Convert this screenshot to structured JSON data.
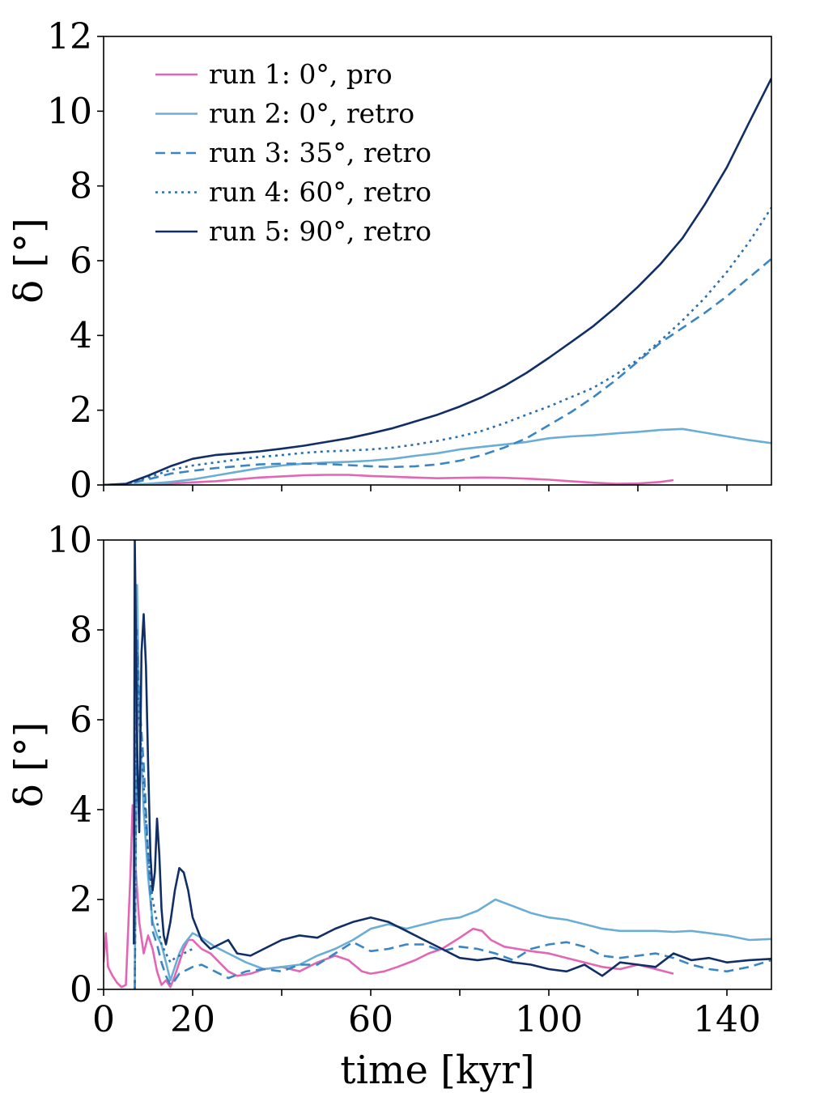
{
  "chart_data": [
    {
      "type": "line",
      "panel": "top",
      "title": "",
      "ylabel": "δ [°]",
      "xlabel": "",
      "xlim": [
        0,
        150
      ],
      "ylim": [
        0,
        12
      ],
      "yticks": [
        0,
        2,
        4,
        6,
        8,
        10,
        12
      ],
      "xticks": [
        0,
        20,
        60,
        100,
        140
      ],
      "legend_position": "top-left",
      "series": [
        {
          "name": "run 1: 0°, pro",
          "color": "#e366b4",
          "dash": "solid",
          "x": [
            0,
            5,
            10,
            15,
            20,
            25,
            30,
            35,
            40,
            45,
            50,
            55,
            60,
            65,
            70,
            75,
            80,
            85,
            90,
            95,
            100,
            105,
            110,
            115,
            120,
            125,
            128
          ],
          "y": [
            0,
            0,
            0.02,
            0.04,
            0.07,
            0.1,
            0.15,
            0.2,
            0.23,
            0.26,
            0.27,
            0.27,
            0.24,
            0.22,
            0.2,
            0.18,
            0.19,
            0.2,
            0.19,
            0.17,
            0.14,
            0.1,
            0.06,
            0.03,
            0.04,
            0.08,
            0.13
          ]
        },
        {
          "name": "run 2: 0°, retro",
          "color": "#6aaed6",
          "dash": "solid",
          "x": [
            0,
            5,
            10,
            15,
            20,
            25,
            30,
            35,
            40,
            45,
            50,
            55,
            60,
            65,
            70,
            75,
            80,
            85,
            90,
            95,
            100,
            105,
            110,
            115,
            120,
            125,
            130,
            135,
            140,
            145,
            150
          ],
          "y": [
            0,
            0.01,
            0.03,
            0.08,
            0.15,
            0.25,
            0.35,
            0.45,
            0.52,
            0.57,
            0.6,
            0.62,
            0.65,
            0.7,
            0.78,
            0.85,
            0.95,
            1.02,
            1.08,
            1.15,
            1.25,
            1.3,
            1.33,
            1.38,
            1.42,
            1.47,
            1.5,
            1.4,
            1.3,
            1.2,
            1.12
          ]
        },
        {
          "name": "run 3: 35°, retro",
          "color": "#3a86c4",
          "dash": "dashed",
          "x": [
            0,
            5,
            10,
            15,
            20,
            25,
            30,
            35,
            40,
            45,
            50,
            55,
            60,
            65,
            70,
            75,
            80,
            85,
            90,
            95,
            100,
            105,
            110,
            115,
            120,
            125,
            130,
            135,
            140,
            145,
            150
          ],
          "y": [
            0,
            0.02,
            0.15,
            0.3,
            0.38,
            0.45,
            0.5,
            0.55,
            0.57,
            0.57,
            0.56,
            0.53,
            0.5,
            0.48,
            0.5,
            0.55,
            0.65,
            0.8,
            1.0,
            1.25,
            1.6,
            1.95,
            2.35,
            2.8,
            3.3,
            3.8,
            4.2,
            4.6,
            5.05,
            5.55,
            6.05
          ]
        },
        {
          "name": "run 4: 60°, retro",
          "color": "#2a6fad",
          "dash": "dotted",
          "x": [
            0,
            5,
            10,
            15,
            20,
            25,
            30,
            35,
            40,
            45,
            50,
            55,
            60,
            65,
            70,
            75,
            80,
            85,
            90,
            95,
            100,
            105,
            110,
            115,
            120,
            125,
            130,
            135,
            140,
            145,
            150
          ],
          "y": [
            0,
            0.02,
            0.2,
            0.4,
            0.52,
            0.6,
            0.68,
            0.75,
            0.8,
            0.86,
            0.9,
            0.92,
            0.95,
            1.0,
            1.08,
            1.18,
            1.3,
            1.45,
            1.65,
            1.88,
            2.1,
            2.35,
            2.6,
            2.95,
            3.35,
            3.85,
            4.4,
            5.0,
            5.7,
            6.5,
            7.42
          ]
        },
        {
          "name": "run 5: 90°, retro",
          "color": "#112e66",
          "dash": "solid",
          "x": [
            0,
            5,
            10,
            15,
            20,
            25,
            30,
            35,
            40,
            45,
            50,
            55,
            60,
            65,
            70,
            75,
            80,
            85,
            90,
            95,
            100,
            105,
            110,
            115,
            120,
            125,
            130,
            135,
            140,
            145,
            150
          ],
          "y": [
            0,
            0.03,
            0.25,
            0.5,
            0.7,
            0.8,
            0.85,
            0.9,
            0.97,
            1.05,
            1.15,
            1.25,
            1.38,
            1.52,
            1.7,
            1.88,
            2.1,
            2.35,
            2.65,
            3.0,
            3.4,
            3.82,
            4.25,
            4.75,
            5.3,
            5.9,
            6.6,
            7.5,
            8.5,
            9.7,
            10.88
          ]
        }
      ],
      "legend": [
        "run 1: 0°, pro",
        "run 2: 0°, retro",
        "run 3: 35°, retro",
        "run 4: 60°, retro",
        "run 5: 90°, retro"
      ]
    },
    {
      "type": "line",
      "panel": "bottom",
      "title": "",
      "ylabel": "δ [°]",
      "xlabel": "time [kyr]",
      "xlim": [
        0,
        150
      ],
      "ylim": [
        0,
        10
      ],
      "yticks": [
        0,
        2,
        4,
        6,
        8,
        10
      ],
      "xticks": [
        0,
        20,
        60,
        100,
        140
      ],
      "series": [
        {
          "name": "run 1: 0°, pro",
          "color": "#e366b4",
          "dash": "solid",
          "x": [
            0,
            0.5,
            1,
            2,
            3,
            4,
            5,
            6,
            6.5,
            7,
            8,
            9,
            10,
            11,
            12,
            13,
            14,
            15,
            16,
            17,
            18,
            19,
            20,
            22,
            24,
            26,
            28,
            30,
            33,
            36,
            40,
            44,
            48,
            52,
            55,
            58,
            60,
            63,
            66,
            70,
            73,
            76,
            80,
            83,
            85,
            87,
            90,
            93,
            96,
            100,
            104,
            108,
            112,
            116,
            120,
            124,
            128
          ],
          "y": [
            0.6,
            1.25,
            0.5,
            0.3,
            0.15,
            0.05,
            0.1,
            2.5,
            4.1,
            3.0,
            1.5,
            0.8,
            1.2,
            0.9,
            0.4,
            0.1,
            0.2,
            0.05,
            0.3,
            0.6,
            0.9,
            1.1,
            1.1,
            0.9,
            0.8,
            0.6,
            0.4,
            0.3,
            0.35,
            0.45,
            0.5,
            0.4,
            0.6,
            0.75,
            0.65,
            0.4,
            0.35,
            0.4,
            0.5,
            0.65,
            0.8,
            0.9,
            1.15,
            1.35,
            1.3,
            1.1,
            0.95,
            0.9,
            0.85,
            0.8,
            0.7,
            0.6,
            0.5,
            0.45,
            0.55,
            0.45,
            0.35
          ]
        },
        {
          "name": "run 2: 0°, retro",
          "color": "#6aaed6",
          "dash": "solid",
          "x": [
            7,
            7.5,
            8,
            9,
            10,
            11,
            12,
            13,
            14,
            15,
            16,
            17,
            18,
            20,
            22,
            25,
            28,
            32,
            36,
            40,
            44,
            48,
            52,
            56,
            60,
            64,
            68,
            72,
            76,
            80,
            84,
            88,
            92,
            96,
            100,
            104,
            108,
            112,
            116,
            120,
            124,
            128,
            132,
            136,
            140,
            145,
            150
          ],
          "y": [
            0,
            9.0,
            6.0,
            4.0,
            2.5,
            1.5,
            1.2,
            1.0,
            0.6,
            0.2,
            0.5,
            0.8,
            1.0,
            1.25,
            1.15,
            0.95,
            0.8,
            0.6,
            0.45,
            0.5,
            0.55,
            0.75,
            0.9,
            1.1,
            1.35,
            1.45,
            1.35,
            1.45,
            1.55,
            1.6,
            1.75,
            2.0,
            1.85,
            1.7,
            1.6,
            1.55,
            1.45,
            1.35,
            1.3,
            1.3,
            1.3,
            1.28,
            1.3,
            1.25,
            1.2,
            1.1,
            1.12
          ]
        },
        {
          "name": "run 3: 35°, retro",
          "color": "#3a86c4",
          "dash": "dashed",
          "x": [
            7,
            7.5,
            8,
            9,
            10,
            11,
            12,
            13,
            14,
            15,
            16,
            17,
            18,
            20,
            22,
            25,
            28,
            32,
            36,
            40,
            44,
            48,
            52,
            56,
            60,
            64,
            68,
            72,
            76,
            80,
            84,
            88,
            92,
            96,
            100,
            104,
            108,
            112,
            116,
            120,
            124,
            128,
            132,
            136,
            140,
            145,
            150
          ],
          "y": [
            0,
            8.0,
            6.5,
            5.0,
            3.0,
            1.3,
            1.0,
            0.6,
            0.3,
            0.1,
            0.2,
            0.35,
            0.4,
            0.5,
            0.55,
            0.4,
            0.25,
            0.4,
            0.45,
            0.4,
            0.55,
            0.55,
            0.8,
            1.05,
            0.85,
            0.9,
            1.0,
            1.0,
            0.85,
            0.95,
            0.9,
            0.8,
            0.65,
            0.9,
            1.0,
            1.05,
            0.95,
            0.75,
            0.7,
            0.75,
            0.8,
            0.7,
            0.55,
            0.45,
            0.4,
            0.5,
            0.65
          ]
        },
        {
          "name": "run 4: 60°, retro",
          "color": "#2a6fad",
          "dash": "dotted",
          "x": [
            7,
            7.5,
            8,
            9,
            10,
            11,
            12,
            13,
            14,
            15,
            16,
            18,
            20
          ],
          "y": [
            0,
            7.5,
            6.0,
            4.5,
            3.0,
            2.0,
            1.5,
            1.0,
            0.8,
            0.6,
            0.7,
            0.8,
            0.9
          ]
        },
        {
          "name": "run 5: 90°, retro",
          "color": "#112e66",
          "dash": "solid",
          "x": [
            6.8,
            7,
            7.3,
            7.6,
            8,
            8.5,
            9,
            9.5,
            10,
            10.5,
            11,
            11.5,
            12,
            12.5,
            13,
            13.5,
            14,
            15,
            16,
            17,
            18,
            19,
            20,
            22,
            24,
            26,
            28,
            30,
            33,
            36,
            40,
            44,
            48,
            52,
            56,
            60,
            64,
            68,
            72,
            76,
            80,
            84,
            88,
            92,
            96,
            100,
            104,
            108,
            112,
            116,
            120,
            124,
            128,
            132,
            136,
            140,
            145,
            150
          ],
          "y": [
            1.0,
            10.0,
            7.5,
            5.0,
            3.5,
            7.5,
            8.35,
            7.2,
            5.0,
            3.0,
            2.2,
            2.6,
            3.8,
            3.0,
            1.8,
            1.2,
            1.0,
            1.5,
            2.2,
            2.7,
            2.6,
            2.2,
            1.6,
            1.1,
            0.9,
            1.0,
            1.1,
            0.8,
            0.75,
            0.9,
            1.1,
            1.2,
            1.15,
            1.35,
            1.5,
            1.6,
            1.5,
            1.3,
            1.1,
            0.9,
            0.7,
            0.65,
            0.7,
            0.6,
            0.55,
            0.45,
            0.4,
            0.55,
            0.3,
            0.6,
            0.55,
            0.5,
            0.8,
            0.65,
            0.7,
            0.6,
            0.65,
            0.68
          ]
        }
      ]
    }
  ]
}
